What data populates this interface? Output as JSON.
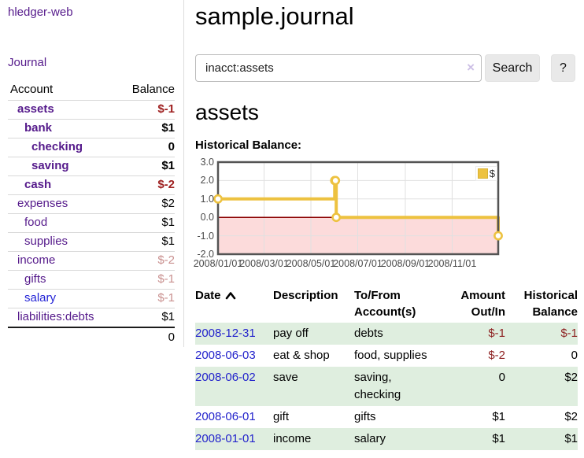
{
  "sidebar": {
    "app_title": "hledger-web",
    "journal_label": "Journal",
    "accounts_table": {
      "headers": {
        "account": "Account",
        "balance": "Balance"
      },
      "rows": [
        {
          "name": "assets",
          "balance": "$-1",
          "level": 1,
          "bold": true,
          "name_color": "purple",
          "balance_class": "neg"
        },
        {
          "name": "bank",
          "balance": "$1",
          "level": 2,
          "bold": true,
          "name_color": "purple",
          "balance_class": ""
        },
        {
          "name": "checking",
          "balance": "0",
          "level": 3,
          "bold": true,
          "name_color": "purple",
          "balance_class": ""
        },
        {
          "name": "saving",
          "balance": "$1",
          "level": 3,
          "bold": true,
          "name_color": "purple",
          "balance_class": ""
        },
        {
          "name": "cash",
          "balance": "$-2",
          "level": 2,
          "bold": true,
          "name_color": "purple",
          "balance_class": "neg"
        },
        {
          "name": "expenses",
          "balance": "$2",
          "level": 1,
          "bold": false,
          "name_color": "purple",
          "balance_class": ""
        },
        {
          "name": "food",
          "balance": "$1",
          "level": 2,
          "bold": false,
          "name_color": "purple",
          "balance_class": ""
        },
        {
          "name": "supplies",
          "balance": "$1",
          "level": 2,
          "bold": false,
          "name_color": "purple",
          "balance_class": ""
        },
        {
          "name": "income",
          "balance": "$-2",
          "level": 1,
          "bold": false,
          "name_color": "purple",
          "balance_class": "neg-dim"
        },
        {
          "name": "gifts",
          "balance": "$-1",
          "level": 2,
          "bold": false,
          "name_color": "purple",
          "balance_class": "neg-dim"
        },
        {
          "name": "salary",
          "balance": "$-1",
          "level": 2,
          "bold": false,
          "name_color": "blue",
          "balance_class": "neg-dim"
        },
        {
          "name": "liabilities:debts",
          "balance": "$1",
          "level": 1,
          "bold": false,
          "name_color": "purple",
          "balance_class": ""
        }
      ],
      "total": "0"
    }
  },
  "header": {
    "title": "sample.journal"
  },
  "search": {
    "value": "inacct:assets",
    "clear_icon": "×",
    "button_label": "Search",
    "help_label": "?"
  },
  "account_page": {
    "title": "assets",
    "chart_label": "Historical Balance:"
  },
  "chart_data": {
    "type": "line",
    "style": "steps",
    "title": "Historical Balance",
    "x_range": [
      "2008-01-01",
      "2008-12-31"
    ],
    "ylim": [
      -2,
      3
    ],
    "grid": true,
    "series": [
      {
        "name": "$",
        "color": "#edc240",
        "points": [
          [
            "2008-01-01",
            1
          ],
          [
            "2008-06-01",
            2
          ],
          [
            "2008-06-02",
            2
          ],
          [
            "2008-06-03",
            0
          ],
          [
            "2008-12-31",
            -1
          ]
        ]
      }
    ],
    "x_ticks": [
      {
        "label": "2008/01/01",
        "date": "2008-01-01"
      },
      {
        "label": "2008/03/01",
        "date": "2008-03-01"
      },
      {
        "label": "2008/05/01",
        "date": "2008-05-01"
      },
      {
        "label": "2008/07/01",
        "date": "2008-07-01"
      },
      {
        "label": "2008/09/01",
        "date": "2008-09-01"
      },
      {
        "label": "2008/11/01",
        "date": "2008-11-01"
      }
    ],
    "y_ticks": [
      {
        "label": "3.0",
        "value": 3
      },
      {
        "label": "2.0",
        "value": 2
      },
      {
        "label": "1.0",
        "value": 1
      },
      {
        "label": "0.0",
        "value": 0
      },
      {
        "label": "-1.0",
        "value": -1
      },
      {
        "label": "-2.0",
        "value": -2
      }
    ],
    "legend_position": "top-right",
    "colors": {
      "negative_region_fill": "#fcdbdb",
      "zero_line": "#8b0000",
      "gridline": "#e0e0e0",
      "plot_border": "#545454"
    }
  },
  "register_table": {
    "headers": [
      {
        "line1": "Date",
        "line2": "",
        "align": "left",
        "sort": "asc"
      },
      {
        "line1": "Description",
        "line2": "",
        "align": "left"
      },
      {
        "line1": "To/From",
        "line2": "Account(s)",
        "align": "left"
      },
      {
        "line1": "Amount",
        "line2": "Out/In",
        "align": "right"
      },
      {
        "line1": "Historical",
        "line2": "Balance",
        "align": "right"
      }
    ],
    "rows": [
      {
        "date": "2008-12-31",
        "description": "pay off",
        "accounts": "debts",
        "amount": "$-1",
        "amount_negative": true,
        "balance": "$-1",
        "balance_negative": true
      },
      {
        "date": "2008-06-03",
        "description": "eat & shop",
        "accounts": "food, supplies",
        "amount": "$-2",
        "amount_negative": true,
        "balance": "0",
        "balance_negative": false
      },
      {
        "date": "2008-06-02",
        "description": "save",
        "accounts": "saving, checking",
        "amount": "0",
        "amount_negative": false,
        "balance": "$2",
        "balance_negative": false
      },
      {
        "date": "2008-06-01",
        "description": "gift",
        "accounts": "gifts",
        "amount": "$1",
        "amount_negative": false,
        "balance": "$2",
        "balance_negative": false
      },
      {
        "date": "2008-01-01",
        "description": "income",
        "accounts": "salary",
        "amount": "$1",
        "amount_negative": false,
        "balance": "$1",
        "balance_negative": false
      }
    ]
  }
}
